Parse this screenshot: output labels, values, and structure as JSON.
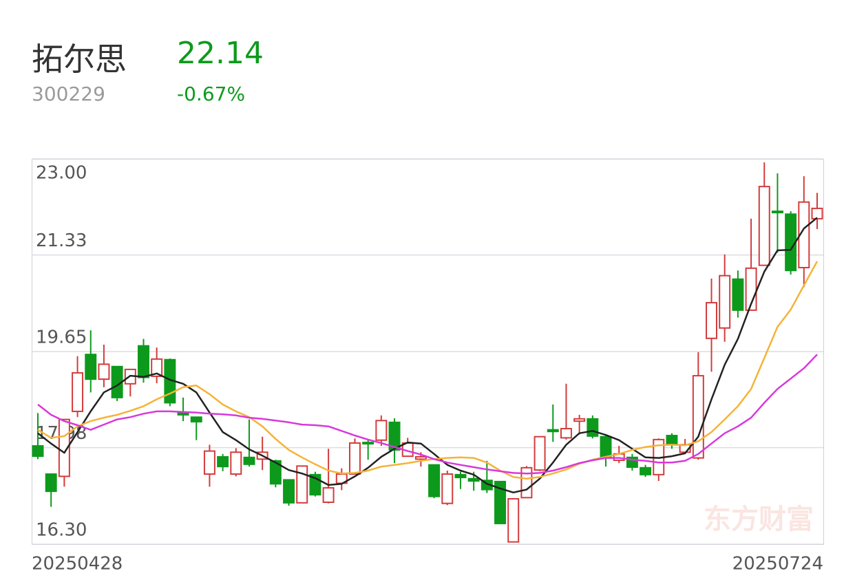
{
  "header": {
    "name": "拓尔思",
    "code": "300229",
    "price": "22.14",
    "change": "-0.67%"
  },
  "chart_data": {
    "type": "candlestick",
    "watermark": "东方财富",
    "x": [
      "20250428",
      null,
      null,
      null,
      null,
      null,
      null,
      null,
      null,
      null,
      null,
      null,
      null,
      null,
      null,
      null,
      null,
      null,
      null,
      null,
      null,
      null,
      null,
      null,
      null,
      null,
      null,
      null,
      null,
      null,
      null,
      null,
      null,
      null,
      null,
      null,
      null,
      null,
      null,
      null,
      null,
      null,
      null,
      null,
      null,
      null,
      null,
      null,
      null,
      null,
      null,
      null,
      null,
      null,
      null,
      null,
      null,
      null,
      null,
      "20250724"
    ],
    "open": [
      18.01,
      17.52,
      17.48,
      18.61,
      19.6,
      19.17,
      19.39,
      19.09,
      19.75,
      19.22,
      19.51,
      18.58,
      18.51,
      17.52,
      17.82,
      17.52,
      17.81,
      17.78,
      17.75,
      17.42,
      17.02,
      17.51,
      17.03,
      17.36,
      17.52,
      18.07,
      18.11,
      18.42,
      17.83,
      17.78,
      17.68,
      17.01,
      17.51,
      17.44,
      17.41,
      17.39,
      16.34,
      17.11,
      17.59,
      18.29,
      18.15,
      18.44,
      18.48,
      18.17,
      17.76,
      17.81,
      17.63,
      17.51,
      18.19,
      17.9,
      17.8,
      19.88,
      20.06,
      20.91,
      20.37,
      21.15,
      22.09,
      22.04,
      21.11,
      21.96
    ],
    "high": [
      18.58,
      17.52,
      18.47,
      19.57,
      20.02,
      19.77,
      19.39,
      19.34,
      19.87,
      19.72,
      19.53,
      18.85,
      18.51,
      18.03,
      17.87,
      17.97,
      18.47,
      18.17,
      17.77,
      17.42,
      17.66,
      17.56,
      17.96,
      17.62,
      18.14,
      18.11,
      18.54,
      18.49,
      18.15,
      17.9,
      17.68,
      17.58,
      17.56,
      17.56,
      17.75,
      17.39,
      17.09,
      17.66,
      18.17,
      18.73,
      19.09,
      18.55,
      18.54,
      18.19,
      18.01,
      17.87,
      17.68,
      18.14,
      18.23,
      18.13,
      19.64,
      20.92,
      21.34,
      21.06,
      21.96,
      22.94,
      22.75,
      22.09,
      22.7,
      22.41
    ],
    "low": [
      17.78,
      16.95,
      17.3,
      18.51,
      18.94,
      19.03,
      18.79,
      18.87,
      19.11,
      19.1,
      18.7,
      18.44,
      18.11,
      17.3,
      17.57,
      17.48,
      17.65,
      17.59,
      17.29,
      16.97,
      17.02,
      17.13,
      17.01,
      17.24,
      17.51,
      17.77,
      18.01,
      17.71,
      17.82,
      17.65,
      17.1,
      16.98,
      17.26,
      17.23,
      17.19,
      16.65,
      16.34,
      17.11,
      17.57,
      18.08,
      18.12,
      18.21,
      18.14,
      17.65,
      17.71,
      17.58,
      17.47,
      17.4,
      17.96,
      17.87,
      17.77,
      19.3,
      19.82,
      20.24,
      20.37,
      21.15,
      21.37,
      20.99,
      20.77,
      21.78
    ],
    "close": [
      17.83,
      17.22,
      18.47,
      19.28,
      19.17,
      19.43,
      18.85,
      19.34,
      19.2,
      19.52,
      18.76,
      18.55,
      18.43,
      17.92,
      17.65,
      17.9,
      17.69,
      17.9,
      17.35,
      17.02,
      17.66,
      17.16,
      17.28,
      17.52,
      18.06,
      18.05,
      18.45,
      17.94,
      18.06,
      17.82,
      17.13,
      17.52,
      17.46,
      17.4,
      17.25,
      16.66,
      17.09,
      17.63,
      18.17,
      18.26,
      18.31,
      18.48,
      18.18,
      17.8,
      17.87,
      17.64,
      17.51,
      18.12,
      18.03,
      18.03,
      19.23,
      20.5,
      20.97,
      20.37,
      21.1,
      22.52,
      22.07,
      21.06,
      22.25,
      22.14
    ],
    "up_color": "#d23b3b",
    "down_color": "#0d9a1c",
    "lines": [
      {
        "color": "#222222",
        "values": [
          18.23,
          18.05,
          17.89,
          18.25,
          18.61,
          18.94,
          19.06,
          19.23,
          19.21,
          19.27,
          19.16,
          19.09,
          18.94,
          18.59,
          18.25,
          18.11,
          17.95,
          17.84,
          17.72,
          17.59,
          17.53,
          17.45,
          17.33,
          17.35,
          17.48,
          17.63,
          17.82,
          17.96,
          18.07,
          18.05,
          17.87,
          17.68,
          17.58,
          17.51,
          17.35,
          17.27,
          17.2,
          17.25,
          17.44,
          17.72,
          18.03,
          18.23,
          18.27,
          18.2,
          18.11,
          17.96,
          17.81,
          17.8,
          17.83,
          17.88,
          18.17,
          18.82,
          19.42,
          19.87,
          20.48,
          21.04,
          21.41,
          21.42,
          21.79,
          21.98
        ]
      },
      {
        "color": "#f5b337",
        "values": [
          18.29,
          18.15,
          18.18,
          18.35,
          18.44,
          18.5,
          18.55,
          18.62,
          18.7,
          18.82,
          18.92,
          19.03,
          19.06,
          18.91,
          18.73,
          18.61,
          18.51,
          18.35,
          18.13,
          17.94,
          17.81,
          17.69,
          17.58,
          17.53,
          17.54,
          17.58,
          17.65,
          17.68,
          17.71,
          17.75,
          17.78,
          17.8,
          17.81,
          17.8,
          17.72,
          17.58,
          17.47,
          17.44,
          17.47,
          17.53,
          17.6,
          17.7,
          17.77,
          17.82,
          17.87,
          17.94,
          17.99,
          18.02,
          18.03,
          18.02,
          18.09,
          18.25,
          18.47,
          18.7,
          19.0,
          19.54,
          20.08,
          20.38,
          20.8,
          21.22
        ]
      },
      {
        "color": "#d838dc",
        "values": [
          18.73,
          18.55,
          18.44,
          18.37,
          18.29,
          18.38,
          18.47,
          18.51,
          18.57,
          18.61,
          18.61,
          18.6,
          18.59,
          18.57,
          18.56,
          18.54,
          18.5,
          18.48,
          18.45,
          18.42,
          18.38,
          18.37,
          18.35,
          18.27,
          18.19,
          18.12,
          18.06,
          17.99,
          17.92,
          17.86,
          17.78,
          17.72,
          17.68,
          17.64,
          17.6,
          17.57,
          17.54,
          17.53,
          17.54,
          17.58,
          17.64,
          17.71,
          17.76,
          17.8,
          17.8,
          17.77,
          17.75,
          17.72,
          17.72,
          17.75,
          17.87,
          18.05,
          18.23,
          18.35,
          18.5,
          18.76,
          19.0,
          19.18,
          19.36,
          19.6
        ]
      }
    ],
    "ylim": [
      16.3,
      23
    ],
    "yticks": [
      {
        "value": 23,
        "label": "23.00"
      },
      21.33,
      19.65,
      17.98,
      {
        "value": 16.3,
        "label": "16.30"
      }
    ],
    "grid": true
  }
}
